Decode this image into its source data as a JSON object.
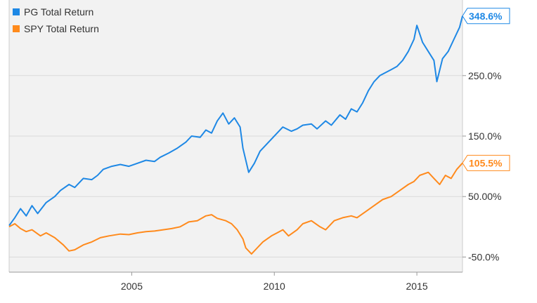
{
  "chart_data": {
    "type": "line",
    "title": "",
    "xlabel": "",
    "ylabel": "",
    "xlim": [
      2000.7,
      2016.6
    ],
    "ylim": [
      -75,
      375
    ],
    "x_ticks": [
      {
        "value": 2005,
        "label": "2005"
      },
      {
        "value": 2010,
        "label": "2010"
      },
      {
        "value": 2015,
        "label": "2015"
      }
    ],
    "y_ticks": [
      {
        "value": 250,
        "label": "250.0%"
      },
      {
        "value": 150,
        "label": "150.0%"
      },
      {
        "value": 50,
        "label": "50.00%"
      },
      {
        "value": -50,
        "label": "-50.0%"
      }
    ],
    "grid": "horizontal",
    "legend_position": "top-left",
    "series": [
      {
        "name": "PG Total Return",
        "color": "#1e88e5",
        "end_label": "348.6%",
        "points": [
          [
            2000.7,
            2
          ],
          [
            2000.9,
            15
          ],
          [
            2001.1,
            30
          ],
          [
            2001.3,
            18
          ],
          [
            2001.5,
            35
          ],
          [
            2001.7,
            22
          ],
          [
            2002.0,
            40
          ],
          [
            2002.3,
            50
          ],
          [
            2002.5,
            60
          ],
          [
            2002.8,
            70
          ],
          [
            2003.0,
            65
          ],
          [
            2003.3,
            80
          ],
          [
            2003.6,
            78
          ],
          [
            2003.8,
            85
          ],
          [
            2004.0,
            95
          ],
          [
            2004.3,
            100
          ],
          [
            2004.6,
            103
          ],
          [
            2004.9,
            100
          ],
          [
            2005.2,
            105
          ],
          [
            2005.5,
            110
          ],
          [
            2005.8,
            108
          ],
          [
            2006.0,
            115
          ],
          [
            2006.3,
            122
          ],
          [
            2006.6,
            130
          ],
          [
            2006.9,
            140
          ],
          [
            2007.1,
            150
          ],
          [
            2007.4,
            148
          ],
          [
            2007.6,
            160
          ],
          [
            2007.8,
            155
          ],
          [
            2008.0,
            175
          ],
          [
            2008.2,
            188
          ],
          [
            2008.4,
            170
          ],
          [
            2008.6,
            180
          ],
          [
            2008.8,
            165
          ],
          [
            2008.9,
            130
          ],
          [
            2009.1,
            90
          ],
          [
            2009.3,
            105
          ],
          [
            2009.5,
            125
          ],
          [
            2009.7,
            135
          ],
          [
            2009.9,
            145
          ],
          [
            2010.1,
            155
          ],
          [
            2010.3,
            165
          ],
          [
            2010.6,
            158
          ],
          [
            2010.8,
            162
          ],
          [
            2011.0,
            168
          ],
          [
            2011.3,
            170
          ],
          [
            2011.5,
            162
          ],
          [
            2011.8,
            175
          ],
          [
            2012.0,
            168
          ],
          [
            2012.3,
            185
          ],
          [
            2012.5,
            178
          ],
          [
            2012.7,
            195
          ],
          [
            2012.9,
            190
          ],
          [
            2013.1,
            205
          ],
          [
            2013.3,
            225
          ],
          [
            2013.5,
            240
          ],
          [
            2013.7,
            250
          ],
          [
            2013.9,
            255
          ],
          [
            2014.1,
            260
          ],
          [
            2014.3,
            265
          ],
          [
            2014.5,
            275
          ],
          [
            2014.7,
            290
          ],
          [
            2014.9,
            310
          ],
          [
            2015.0,
            333
          ],
          [
            2015.2,
            305
          ],
          [
            2015.4,
            290
          ],
          [
            2015.6,
            275
          ],
          [
            2015.7,
            240
          ],
          [
            2015.9,
            278
          ],
          [
            2016.1,
            290
          ],
          [
            2016.3,
            310
          ],
          [
            2016.5,
            330
          ],
          [
            2016.6,
            348.6
          ]
        ]
      },
      {
        "name": "SPY Total Return",
        "color": "#ff8a1c",
        "end_label": "105.5%",
        "points": [
          [
            2000.7,
            0
          ],
          [
            2000.9,
            5
          ],
          [
            2001.1,
            -3
          ],
          [
            2001.3,
            -8
          ],
          [
            2001.5,
            -5
          ],
          [
            2001.8,
            -15
          ],
          [
            2002.0,
            -10
          ],
          [
            2002.3,
            -18
          ],
          [
            2002.6,
            -30
          ],
          [
            2002.8,
            -40
          ],
          [
            2003.0,
            -38
          ],
          [
            2003.3,
            -30
          ],
          [
            2003.6,
            -25
          ],
          [
            2003.9,
            -18
          ],
          [
            2004.2,
            -15
          ],
          [
            2004.6,
            -12
          ],
          [
            2004.9,
            -13
          ],
          [
            2005.2,
            -10
          ],
          [
            2005.5,
            -8
          ],
          [
            2005.8,
            -7
          ],
          [
            2006.1,
            -5
          ],
          [
            2006.4,
            -3
          ],
          [
            2006.7,
            0
          ],
          [
            2007.0,
            8
          ],
          [
            2007.3,
            10
          ],
          [
            2007.6,
            18
          ],
          [
            2007.8,
            20
          ],
          [
            2008.0,
            14
          ],
          [
            2008.3,
            10
          ],
          [
            2008.5,
            5
          ],
          [
            2008.7,
            -5
          ],
          [
            2008.9,
            -20
          ],
          [
            2009.0,
            -35
          ],
          [
            2009.2,
            -45
          ],
          [
            2009.4,
            -35
          ],
          [
            2009.6,
            -25
          ],
          [
            2009.9,
            -15
          ],
          [
            2010.1,
            -10
          ],
          [
            2010.3,
            -5
          ],
          [
            2010.5,
            -15
          ],
          [
            2010.8,
            -5
          ],
          [
            2011.0,
            5
          ],
          [
            2011.3,
            10
          ],
          [
            2011.6,
            0
          ],
          [
            2011.8,
            -5
          ],
          [
            2012.1,
            10
          ],
          [
            2012.4,
            15
          ],
          [
            2012.7,
            18
          ],
          [
            2012.9,
            15
          ],
          [
            2013.2,
            25
          ],
          [
            2013.5,
            35
          ],
          [
            2013.8,
            45
          ],
          [
            2014.1,
            50
          ],
          [
            2014.4,
            60
          ],
          [
            2014.7,
            70
          ],
          [
            2014.9,
            75
          ],
          [
            2015.1,
            85
          ],
          [
            2015.4,
            90
          ],
          [
            2015.6,
            80
          ],
          [
            2015.8,
            70
          ],
          [
            2016.0,
            85
          ],
          [
            2016.2,
            80
          ],
          [
            2016.4,
            95
          ],
          [
            2016.6,
            105.5
          ]
        ]
      }
    ]
  }
}
